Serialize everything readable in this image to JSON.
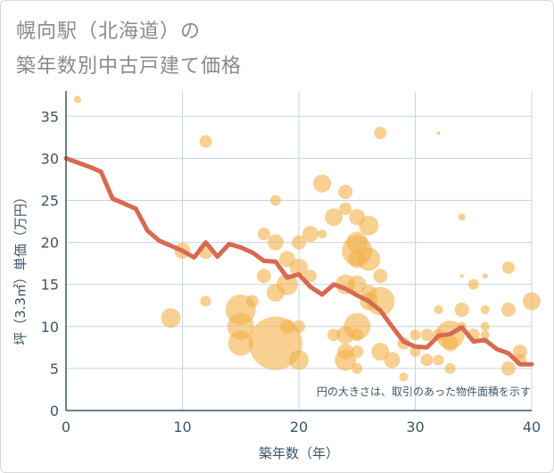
{
  "chart_data": {
    "type": "scatter+line",
    "title_lines": [
      "幌向駅（北海道）の",
      "築年数別中古戸建て価格"
    ],
    "xlabel": "築年数（年）",
    "ylabel": "坪（3.3㎡）単価（万円）",
    "xlim": [
      0,
      40
    ],
    "ylim": [
      0,
      38
    ],
    "xticks": [
      0,
      10,
      20,
      30,
      40
    ],
    "yticks": [
      0,
      5,
      10,
      15,
      20,
      25,
      30,
      35
    ],
    "grid": true,
    "annotation": "円の大きさは、取引のあった物件面積を示す",
    "colors": {
      "bubble": "#f2b04a",
      "line": "#d76a52",
      "axis_text": "#3d5568",
      "grid": "#c5d5e2"
    },
    "series": [
      {
        "name": "average",
        "type": "line",
        "x": [
          0,
          1,
          2,
          3,
          4,
          5,
          6,
          7,
          8,
          9,
          10,
          11,
          12,
          13,
          14,
          15,
          16,
          17,
          18,
          19,
          20,
          21,
          22,
          23,
          24,
          25,
          26,
          27,
          28,
          29,
          30,
          31,
          32,
          33,
          34,
          35,
          36,
          37,
          38,
          39,
          40
        ],
        "y": [
          30,
          29.5,
          29,
          28.4,
          25.2,
          24.6,
          24,
          21.4,
          20.2,
          19.6,
          19,
          18.2,
          20,
          18.3,
          19.8,
          19.4,
          18.8,
          17.8,
          17.7,
          15.8,
          16.2,
          14.7,
          13.8,
          15,
          14.5,
          13.7,
          13,
          11.9,
          10,
          8.2,
          7.6,
          7.5,
          8.9,
          9.1,
          9.9,
          8.2,
          8.4,
          7.3,
          6.8,
          5.5,
          5.5
        ]
      },
      {
        "name": "transactions",
        "type": "bubble",
        "points": [
          {
            "x": 1,
            "y": 37,
            "size": 4
          },
          {
            "x": 9,
            "y": 11,
            "size": 11
          },
          {
            "x": 10,
            "y": 19,
            "size": 9
          },
          {
            "x": 12,
            "y": 32,
            "size": 7
          },
          {
            "x": 12,
            "y": 19,
            "size": 9
          },
          {
            "x": 12,
            "y": 13,
            "size": 6
          },
          {
            "x": 15,
            "y": 12,
            "size": 17
          },
          {
            "x": 15,
            "y": 10,
            "size": 15
          },
          {
            "x": 15,
            "y": 8,
            "size": 14
          },
          {
            "x": 16,
            "y": 13,
            "size": 7
          },
          {
            "x": 17,
            "y": 21,
            "size": 7
          },
          {
            "x": 17,
            "y": 16,
            "size": 8
          },
          {
            "x": 18,
            "y": 8,
            "size": 30
          },
          {
            "x": 18,
            "y": 14,
            "size": 10
          },
          {
            "x": 18,
            "y": 20,
            "size": 9
          },
          {
            "x": 18,
            "y": 25,
            "size": 6
          },
          {
            "x": 19,
            "y": 15,
            "size": 12
          },
          {
            "x": 19,
            "y": 18,
            "size": 9
          },
          {
            "x": 19,
            "y": 10,
            "size": 8
          },
          {
            "x": 20,
            "y": 20,
            "size": 8
          },
          {
            "x": 20,
            "y": 17,
            "size": 10
          },
          {
            "x": 20,
            "y": 10,
            "size": 7
          },
          {
            "x": 20,
            "y": 6,
            "size": 11
          },
          {
            "x": 21,
            "y": 21,
            "size": 9
          },
          {
            "x": 21,
            "y": 16,
            "size": 7
          },
          {
            "x": 22,
            "y": 27,
            "size": 10
          },
          {
            "x": 22,
            "y": 21,
            "size": 5
          },
          {
            "x": 23,
            "y": 23,
            "size": 10
          },
          {
            "x": 23,
            "y": 9,
            "size": 7
          },
          {
            "x": 24,
            "y": 26,
            "size": 8
          },
          {
            "x": 24,
            "y": 24,
            "size": 7
          },
          {
            "x": 24,
            "y": 15,
            "size": 11
          },
          {
            "x": 24,
            "y": 9,
            "size": 10
          },
          {
            "x": 24,
            "y": 7,
            "size": 9
          },
          {
            "x": 24,
            "y": 6,
            "size": 12
          },
          {
            "x": 25,
            "y": 23,
            "size": 9
          },
          {
            "x": 25,
            "y": 20,
            "size": 12
          },
          {
            "x": 25,
            "y": 19,
            "size": 17
          },
          {
            "x": 25,
            "y": 18,
            "size": 10
          },
          {
            "x": 25,
            "y": 15,
            "size": 10
          },
          {
            "x": 25,
            "y": 10,
            "size": 15
          },
          {
            "x": 25,
            "y": 9,
            "size": 7
          },
          {
            "x": 25,
            "y": 7,
            "size": 7
          },
          {
            "x": 25,
            "y": 5,
            "size": 6
          },
          {
            "x": 26,
            "y": 22,
            "size": 11
          },
          {
            "x": 26,
            "y": 18,
            "size": 13
          },
          {
            "x": 26,
            "y": 14,
            "size": 9
          },
          {
            "x": 26,
            "y": 13,
            "size": 10
          },
          {
            "x": 27,
            "y": 33,
            "size": 7
          },
          {
            "x": 27,
            "y": 16,
            "size": 8
          },
          {
            "x": 27,
            "y": 13,
            "size": 16
          },
          {
            "x": 27,
            "y": 7,
            "size": 10
          },
          {
            "x": 28,
            "y": 6,
            "size": 9
          },
          {
            "x": 29,
            "y": 8,
            "size": 7
          },
          {
            "x": 29,
            "y": 4,
            "size": 5
          },
          {
            "x": 30,
            "y": 9,
            "size": 6
          },
          {
            "x": 30,
            "y": 7,
            "size": 6
          },
          {
            "x": 31,
            "y": 9,
            "size": 7
          },
          {
            "x": 31,
            "y": 6,
            "size": 7
          },
          {
            "x": 32,
            "y": 33,
            "size": 2
          },
          {
            "x": 32,
            "y": 12,
            "size": 5
          },
          {
            "x": 32,
            "y": 9,
            "size": 7
          },
          {
            "x": 32,
            "y": 6,
            "size": 6
          },
          {
            "x": 33,
            "y": 9,
            "size": 16
          },
          {
            "x": 33,
            "y": 8,
            "size": 9
          },
          {
            "x": 33,
            "y": 5,
            "size": 6
          },
          {
            "x": 34,
            "y": 23,
            "size": 4
          },
          {
            "x": 34,
            "y": 16,
            "size": 2
          },
          {
            "x": 34,
            "y": 12,
            "size": 8
          },
          {
            "x": 34,
            "y": 10,
            "size": 5
          },
          {
            "x": 35,
            "y": 15,
            "size": 6
          },
          {
            "x": 35,
            "y": 9,
            "size": 7
          },
          {
            "x": 36,
            "y": 16,
            "size": 3
          },
          {
            "x": 36,
            "y": 12,
            "size": 5
          },
          {
            "x": 36,
            "y": 10,
            "size": 5
          },
          {
            "x": 36,
            "y": 9,
            "size": 5
          },
          {
            "x": 38,
            "y": 17,
            "size": 7
          },
          {
            "x": 38,
            "y": 12,
            "size": 8
          },
          {
            "x": 38,
            "y": 5,
            "size": 8
          },
          {
            "x": 39,
            "y": 7,
            "size": 8
          },
          {
            "x": 39,
            "y": 6,
            "size": 7
          },
          {
            "x": 40,
            "y": 13,
            "size": 10
          }
        ]
      }
    ]
  }
}
